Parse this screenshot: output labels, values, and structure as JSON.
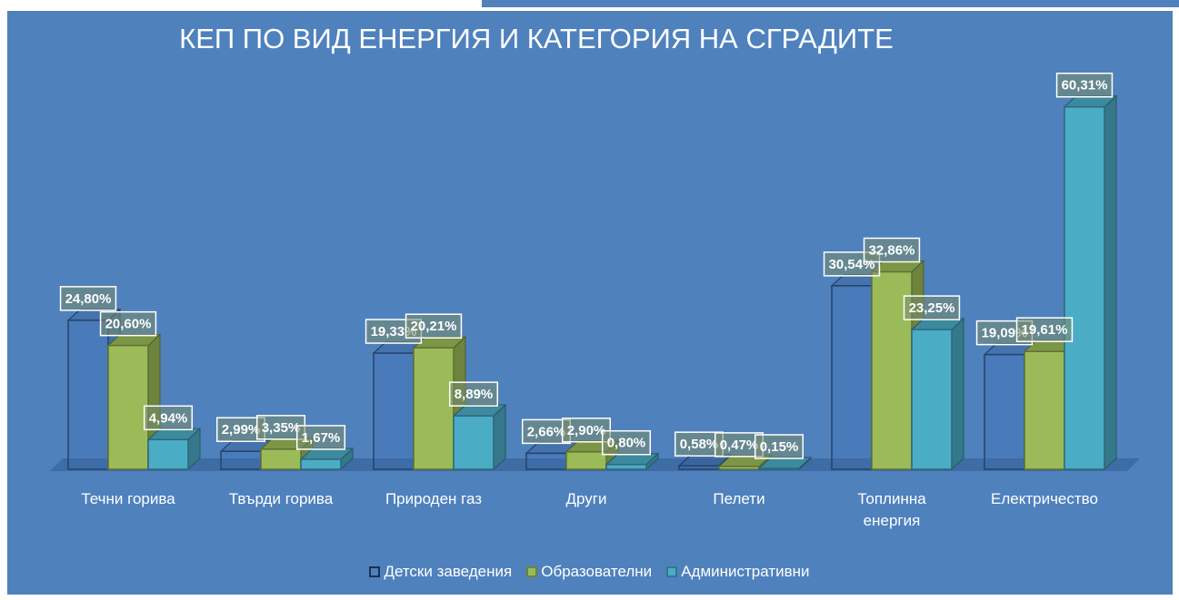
{
  "chart_data": {
    "type": "bar3d",
    "title": "КЕП ПО ВИД ЕНЕРГИЯ И КАТЕГОРИЯ НА СГРАДИТЕ",
    "categories": [
      "Течни горива",
      "Твърди горива",
      "Природен газ",
      "Други",
      "Пелети",
      "Топлинна енергия",
      "Електричество"
    ],
    "series": [
      {
        "name": "Детски заведения",
        "color": "#3f6eb3",
        "values": [
          24.8,
          2.99,
          19.33,
          2.66,
          0.58,
          30.54,
          19.09
        ],
        "value_labels": [
          "24,80%",
          "2,99%",
          "19,33%",
          "2,66%",
          "0,58%",
          "30,54%",
          "19,09%"
        ]
      },
      {
        "name": "Образователни",
        "color": "#9bbb59",
        "values": [
          20.6,
          3.35,
          20.21,
          2.9,
          0.47,
          32.86,
          19.61
        ],
        "value_labels": [
          "20,60%",
          "3,35%",
          "20,21%",
          "2,90%",
          "0,47%",
          "32,86%",
          "19,61%"
        ]
      },
      {
        "name": "Административни",
        "color": "#4bacc6",
        "values": [
          4.94,
          1.67,
          8.89,
          0.8,
          0.15,
          23.25,
          60.31
        ],
        "value_labels": [
          "4,94%",
          "1,67%",
          "8,89%",
          "0,80%",
          "0,15%",
          "23,25%",
          "60,31%"
        ]
      }
    ],
    "legend": "bottom"
  }
}
